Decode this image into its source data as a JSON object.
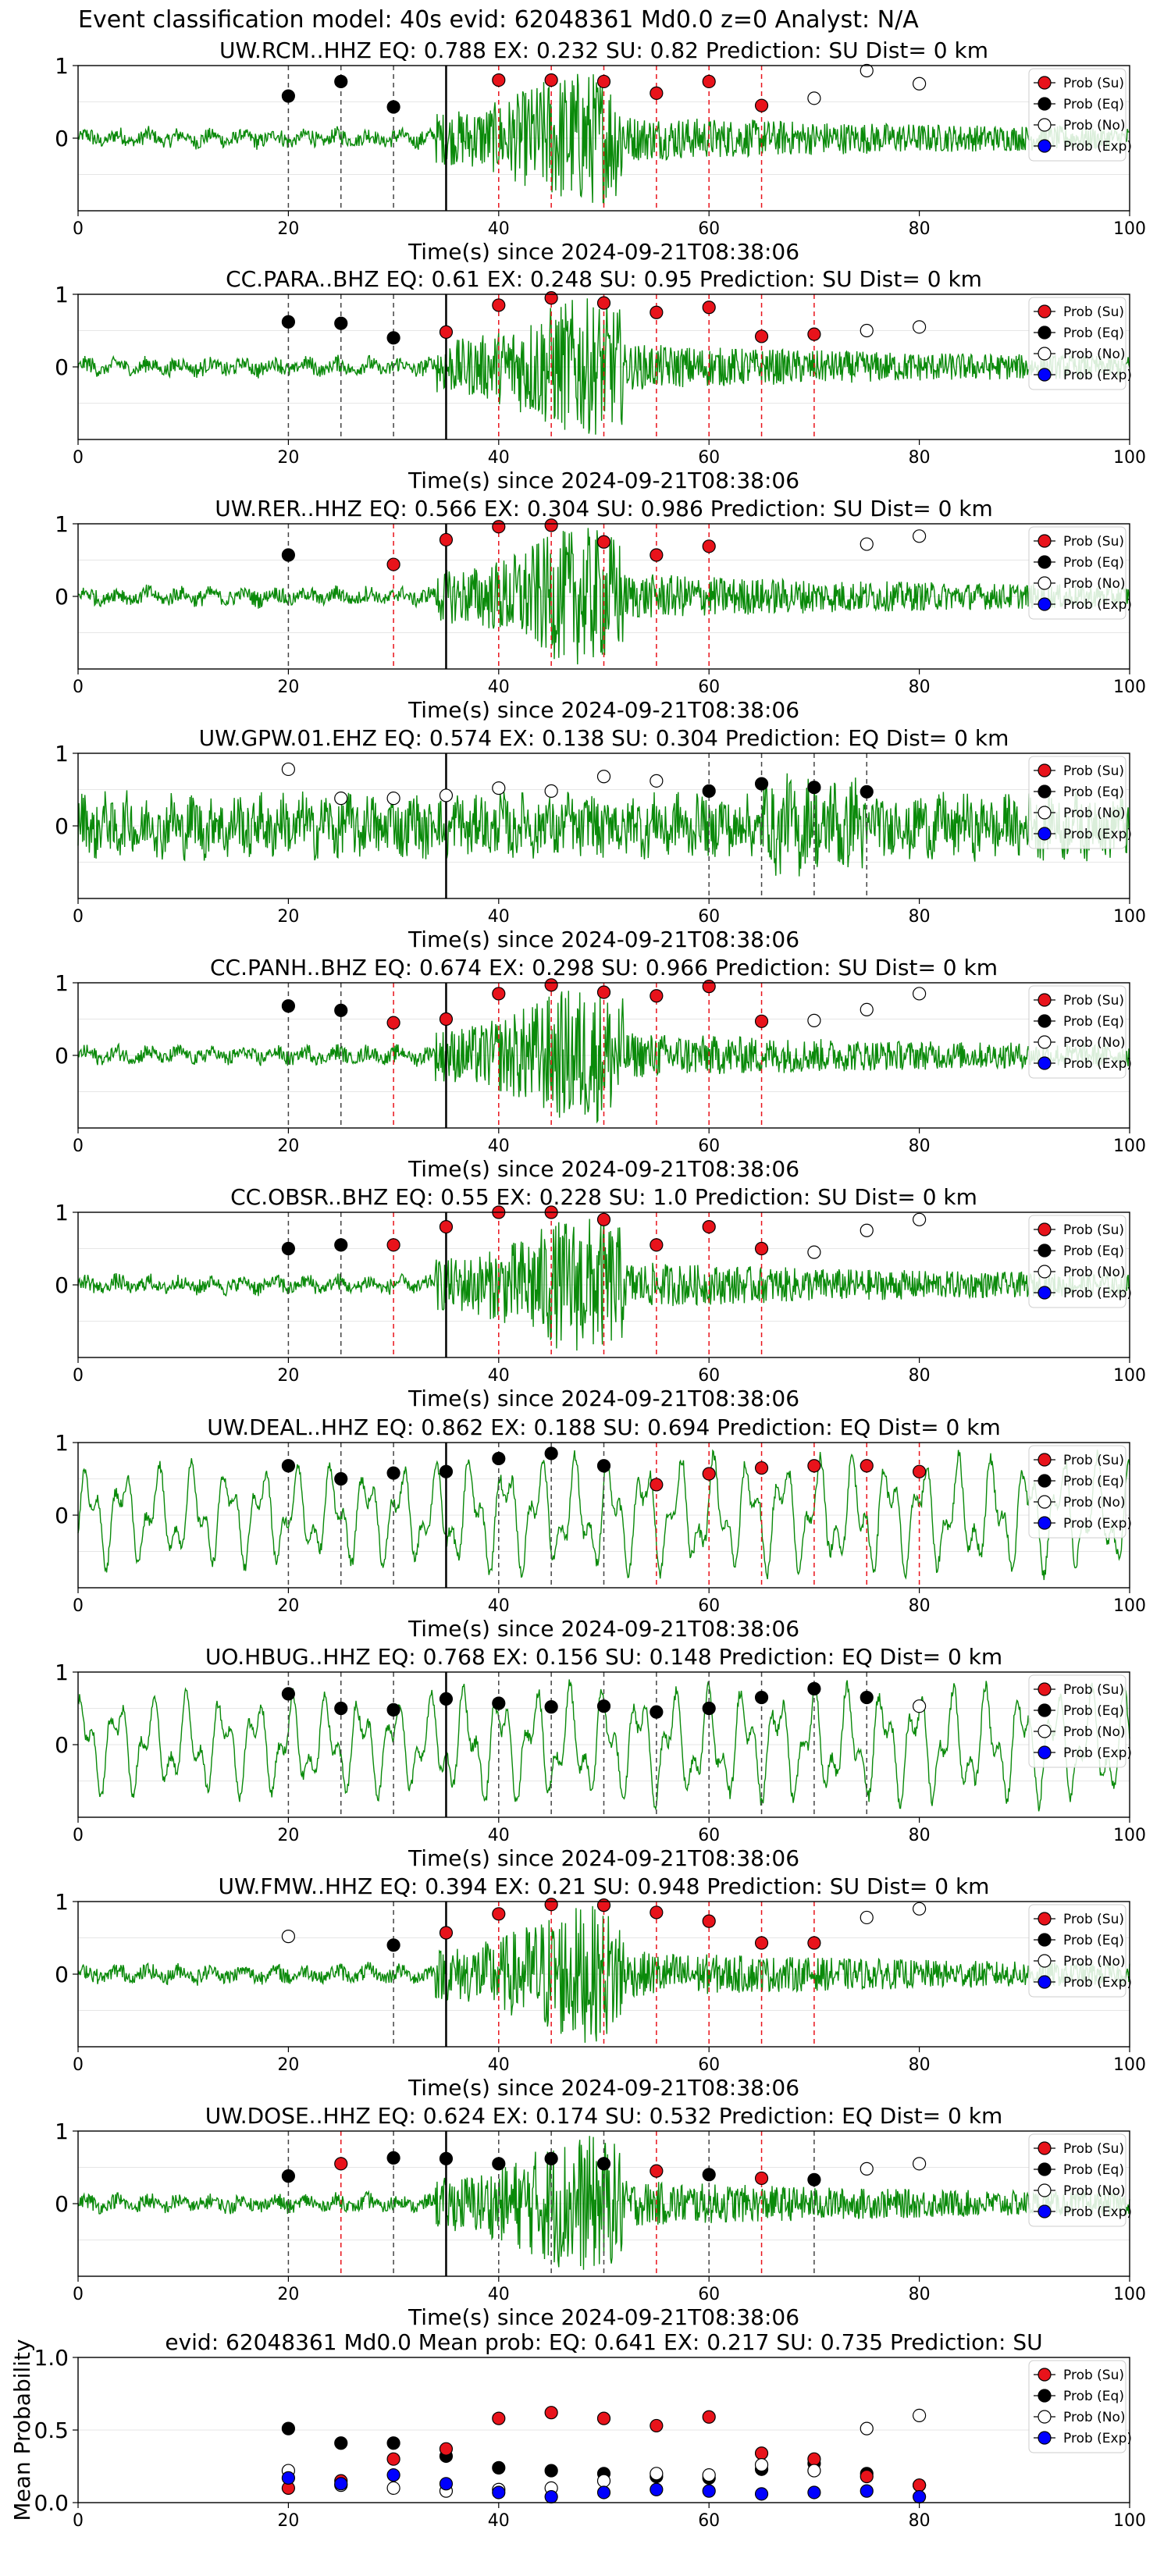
{
  "figure_title": "Event classification model: 40s evid: 62048361 Md0.0 z=0 Analyst: N/A",
  "legend_labels": [
    "Prob (Su)",
    "Prob (Eq)",
    "Prob (No)",
    "Prob (Exp)"
  ],
  "colors": {
    "su": "#e8131b",
    "eq": "#000000",
    "no": "#ffffff",
    "exp": "#0000ff",
    "waveform": "#0a8a0a",
    "onset": "#000000"
  },
  "chart_data": [
    {
      "type": "line",
      "title": "UW.RCM..HHZ   EQ: 0.788  EX: 0.232  SU: 0.82   Prediction: SU    Dist= 0 km",
      "xlabel": "Time(s) since 2024-09-21T08:38:06",
      "ylabel": "",
      "xlim": [
        0,
        100
      ],
      "ylim": [
        -1,
        1
      ],
      "xticks": [
        "0",
        "20",
        "40",
        "60",
        "80",
        "100"
      ],
      "yticks": [
        "1",
        "0"
      ],
      "onset_time": 35,
      "waveform_style": "quiet-then-burst",
      "points": [
        [
          20,
          0.58,
          "eq"
        ],
        [
          25,
          0.78,
          "eq"
        ],
        [
          30,
          0.43,
          "eq"
        ],
        [
          40,
          0.8,
          "su"
        ],
        [
          45,
          0.8,
          "su"
        ],
        [
          50,
          0.78,
          "su"
        ],
        [
          55,
          0.62,
          "su"
        ],
        [
          60,
          0.78,
          "su"
        ],
        [
          65,
          0.45,
          "su"
        ],
        [
          70,
          0.55,
          "no"
        ],
        [
          75,
          0.93,
          "no"
        ],
        [
          80,
          0.75,
          "no"
        ]
      ]
    },
    {
      "type": "line",
      "title": "CC.PARA..BHZ   EQ: 0.61  EX: 0.248  SU: 0.95   Prediction: SU    Dist= 0 km",
      "xlabel": "Time(s) since 2024-09-21T08:38:06",
      "ylabel": "",
      "xlim": [
        0,
        100
      ],
      "ylim": [
        -1,
        1
      ],
      "xticks": [
        "0",
        "20",
        "40",
        "60",
        "80",
        "100"
      ],
      "yticks": [
        "1",
        "0"
      ],
      "onset_time": 35,
      "waveform_style": "quiet-then-burst",
      "points": [
        [
          20,
          0.62,
          "eq"
        ],
        [
          25,
          0.6,
          "eq"
        ],
        [
          30,
          0.4,
          "eq"
        ],
        [
          35,
          0.48,
          "su"
        ],
        [
          40,
          0.85,
          "su"
        ],
        [
          45,
          0.95,
          "su"
        ],
        [
          50,
          0.88,
          "su"
        ],
        [
          55,
          0.75,
          "su"
        ],
        [
          60,
          0.82,
          "su"
        ],
        [
          65,
          0.42,
          "su"
        ],
        [
          70,
          0.45,
          "su"
        ],
        [
          75,
          0.5,
          "no"
        ],
        [
          80,
          0.55,
          "no"
        ]
      ]
    },
    {
      "type": "line",
      "title": "UW.RER..HHZ   EQ: 0.566  EX: 0.304  SU: 0.986   Prediction: SU    Dist= 0 km",
      "xlabel": "Time(s) since 2024-09-21T08:38:06",
      "ylabel": "",
      "xlim": [
        0,
        100
      ],
      "ylim": [
        -1,
        1
      ],
      "xticks": [
        "0",
        "20",
        "40",
        "60",
        "80",
        "100"
      ],
      "yticks": [
        "1",
        "0"
      ],
      "onset_time": 35,
      "waveform_style": "quiet-then-burst",
      "points": [
        [
          20,
          0.57,
          "eq"
        ],
        [
          30,
          0.44,
          "su"
        ],
        [
          35,
          0.78,
          "su"
        ],
        [
          40,
          0.96,
          "su"
        ],
        [
          45,
          0.98,
          "su"
        ],
        [
          50,
          0.75,
          "su"
        ],
        [
          55,
          0.57,
          "su"
        ],
        [
          60,
          0.69,
          "su"
        ],
        [
          75,
          0.72,
          "no"
        ],
        [
          80,
          0.83,
          "no"
        ]
      ]
    },
    {
      "type": "line",
      "title": "UW.GPW.01.EHZ   EQ: 0.574  EX: 0.138  SU: 0.304   Prediction: EQ    Dist= 0 km",
      "xlabel": "Time(s) since 2024-09-21T08:38:06",
      "ylabel": "",
      "xlim": [
        0,
        100
      ],
      "ylim": [
        -1,
        1
      ],
      "xticks": [
        "0",
        "20",
        "40",
        "60",
        "80",
        "100"
      ],
      "yticks": [
        "1",
        "0"
      ],
      "onset_time": 35,
      "waveform_style": "noisy",
      "points": [
        [
          20,
          0.78,
          "no"
        ],
        [
          25,
          0.38,
          "no"
        ],
        [
          30,
          0.38,
          "no"
        ],
        [
          35,
          0.42,
          "no"
        ],
        [
          40,
          0.52,
          "no"
        ],
        [
          45,
          0.48,
          "no"
        ],
        [
          50,
          0.68,
          "no"
        ],
        [
          55,
          0.62,
          "no"
        ],
        [
          60,
          0.48,
          "eq"
        ],
        [
          65,
          0.58,
          "eq"
        ],
        [
          70,
          0.53,
          "eq"
        ],
        [
          75,
          0.47,
          "eq"
        ]
      ]
    },
    {
      "type": "line",
      "title": "CC.PANH..BHZ   EQ: 0.674  EX: 0.298  SU: 0.966   Prediction: SU    Dist= 0 km",
      "xlabel": "Time(s) since 2024-09-21T08:38:06",
      "ylabel": "",
      "xlim": [
        0,
        100
      ],
      "ylim": [
        -1,
        1
      ],
      "xticks": [
        "0",
        "20",
        "40",
        "60",
        "80",
        "100"
      ],
      "yticks": [
        "1",
        "0"
      ],
      "onset_time": 35,
      "waveform_style": "quiet-then-burst",
      "points": [
        [
          20,
          0.68,
          "eq"
        ],
        [
          25,
          0.62,
          "eq"
        ],
        [
          30,
          0.45,
          "su"
        ],
        [
          35,
          0.5,
          "su"
        ],
        [
          40,
          0.85,
          "su"
        ],
        [
          45,
          0.97,
          "su"
        ],
        [
          50,
          0.87,
          "su"
        ],
        [
          55,
          0.82,
          "su"
        ],
        [
          60,
          0.95,
          "su"
        ],
        [
          65,
          0.47,
          "su"
        ],
        [
          70,
          0.48,
          "no"
        ],
        [
          75,
          0.63,
          "no"
        ],
        [
          80,
          0.85,
          "no"
        ]
      ]
    },
    {
      "type": "line",
      "title": "CC.OBSR..BHZ   EQ: 0.55  EX: 0.228  SU: 1.0   Prediction: SU    Dist= 0 km",
      "xlabel": "Time(s) since 2024-09-21T08:38:06",
      "ylabel": "",
      "xlim": [
        0,
        100
      ],
      "ylim": [
        -1,
        1
      ],
      "xticks": [
        "0",
        "20",
        "40",
        "60",
        "80",
        "100"
      ],
      "yticks": [
        "1",
        "0"
      ],
      "onset_time": 35,
      "waveform_style": "quiet-then-burst",
      "points": [
        [
          20,
          0.5,
          "eq"
        ],
        [
          25,
          0.55,
          "eq"
        ],
        [
          30,
          0.55,
          "su"
        ],
        [
          35,
          0.8,
          "su"
        ],
        [
          40,
          1.0,
          "su"
        ],
        [
          45,
          1.0,
          "su"
        ],
        [
          50,
          0.9,
          "su"
        ],
        [
          55,
          0.55,
          "su"
        ],
        [
          60,
          0.8,
          "su"
        ],
        [
          65,
          0.5,
          "su"
        ],
        [
          70,
          0.45,
          "no"
        ],
        [
          75,
          0.75,
          "no"
        ],
        [
          80,
          0.9,
          "no"
        ]
      ]
    },
    {
      "type": "line",
      "title": "UW.DEAL..HHZ   EQ: 0.862  EX: 0.188  SU: 0.694   Prediction: EQ    Dist= 0 km",
      "xlabel": "Time(s) since 2024-09-21T08:38:06",
      "ylabel": "",
      "xlim": [
        0,
        100
      ],
      "ylim": [
        -1,
        1
      ],
      "xticks": [
        "0",
        "20",
        "40",
        "60",
        "80",
        "100"
      ],
      "yticks": [
        "1",
        "0"
      ],
      "onset_time": 35,
      "waveform_style": "long-period",
      "points": [
        [
          20,
          0.68,
          "eq"
        ],
        [
          25,
          0.5,
          "eq"
        ],
        [
          30,
          0.58,
          "eq"
        ],
        [
          35,
          0.6,
          "eq"
        ],
        [
          40,
          0.78,
          "eq"
        ],
        [
          45,
          0.85,
          "eq"
        ],
        [
          50,
          0.68,
          "eq"
        ],
        [
          55,
          0.42,
          "su"
        ],
        [
          60,
          0.57,
          "su"
        ],
        [
          65,
          0.65,
          "su"
        ],
        [
          70,
          0.68,
          "su"
        ],
        [
          75,
          0.68,
          "su"
        ],
        [
          80,
          0.6,
          "su"
        ]
      ]
    },
    {
      "type": "line",
      "title": "UO.HBUG..HHZ   EQ: 0.768  EX: 0.156  SU: 0.148   Prediction: EQ    Dist= 0 km",
      "xlabel": "Time(s) since 2024-09-21T08:38:06",
      "ylabel": "",
      "xlim": [
        0,
        100
      ],
      "ylim": [
        -1,
        1
      ],
      "xticks": [
        "0",
        "20",
        "40",
        "60",
        "80",
        "100"
      ],
      "yticks": [
        "1",
        "0"
      ],
      "onset_time": 35,
      "waveform_style": "long-period",
      "points": [
        [
          20,
          0.7,
          "eq"
        ],
        [
          25,
          0.5,
          "eq"
        ],
        [
          30,
          0.48,
          "eq"
        ],
        [
          35,
          0.63,
          "eq"
        ],
        [
          40,
          0.57,
          "eq"
        ],
        [
          45,
          0.52,
          "eq"
        ],
        [
          50,
          0.53,
          "eq"
        ],
        [
          55,
          0.45,
          "eq"
        ],
        [
          60,
          0.5,
          "eq"
        ],
        [
          65,
          0.65,
          "eq"
        ],
        [
          70,
          0.77,
          "eq"
        ],
        [
          75,
          0.65,
          "eq"
        ],
        [
          80,
          0.53,
          "no"
        ]
      ]
    },
    {
      "type": "line",
      "title": "UW.FMW..HHZ   EQ: 0.394  EX: 0.21  SU: 0.948   Prediction: SU    Dist= 0 km",
      "xlabel": "Time(s) since 2024-09-21T08:38:06",
      "ylabel": "",
      "xlim": [
        0,
        100
      ],
      "ylim": [
        -1,
        1
      ],
      "xticks": [
        "0",
        "20",
        "40",
        "60",
        "80",
        "100"
      ],
      "yticks": [
        "1",
        "0"
      ],
      "onset_time": 35,
      "waveform_style": "quiet-then-burst",
      "points": [
        [
          20,
          0.52,
          "no"
        ],
        [
          30,
          0.4,
          "eq"
        ],
        [
          35,
          0.57,
          "su"
        ],
        [
          40,
          0.83,
          "su"
        ],
        [
          45,
          0.96,
          "su"
        ],
        [
          50,
          0.95,
          "su"
        ],
        [
          55,
          0.85,
          "su"
        ],
        [
          60,
          0.73,
          "su"
        ],
        [
          65,
          0.43,
          "su"
        ],
        [
          70,
          0.43,
          "su"
        ],
        [
          75,
          0.78,
          "no"
        ],
        [
          80,
          0.9,
          "no"
        ]
      ]
    },
    {
      "type": "line",
      "title": "UW.DOSE..HHZ   EQ: 0.624  EX: 0.174  SU: 0.532   Prediction: EQ    Dist= 0 km",
      "xlabel": "Time(s) since 2024-09-21T08:38:06",
      "ylabel": "",
      "xlim": [
        0,
        100
      ],
      "ylim": [
        -1,
        1
      ],
      "xticks": [
        "0",
        "20",
        "40",
        "60",
        "80",
        "100"
      ],
      "yticks": [
        "1",
        "0"
      ],
      "onset_time": 35,
      "waveform_style": "quiet-then-burst",
      "points": [
        [
          20,
          0.38,
          "eq"
        ],
        [
          25,
          0.55,
          "su"
        ],
        [
          30,
          0.63,
          "eq"
        ],
        [
          35,
          0.62,
          "eq"
        ],
        [
          40,
          0.55,
          "eq"
        ],
        [
          45,
          0.62,
          "eq"
        ],
        [
          50,
          0.55,
          "eq"
        ],
        [
          55,
          0.45,
          "su"
        ],
        [
          60,
          0.4,
          "eq"
        ],
        [
          65,
          0.35,
          "su"
        ],
        [
          70,
          0.33,
          "eq"
        ],
        [
          75,
          0.48,
          "no"
        ],
        [
          80,
          0.55,
          "no"
        ]
      ]
    },
    {
      "type": "scatter",
      "title": "evid: 62048361   Md0.0   Mean prob:   EQ: 0.641  EX: 0.217  SU: 0.735   Prediction: SU",
      "xlabel": "",
      "ylabel": "Mean Probability",
      "xlim": [
        0,
        100
      ],
      "ylim": [
        0,
        1
      ],
      "xticks": [
        "0",
        "20",
        "40",
        "60",
        "80",
        "100"
      ],
      "yticks": [
        "1.0",
        "0.5",
        "0.0"
      ],
      "points": [
        [
          20,
          0.51,
          "eq"
        ],
        [
          25,
          0.41,
          "eq"
        ],
        [
          30,
          0.41,
          "eq"
        ],
        [
          35,
          0.32,
          "eq"
        ],
        [
          40,
          0.24,
          "eq"
        ],
        [
          45,
          0.22,
          "eq"
        ],
        [
          50,
          0.2,
          "eq"
        ],
        [
          55,
          0.18,
          "eq"
        ],
        [
          60,
          0.17,
          "eq"
        ],
        [
          65,
          0.23,
          "eq"
        ],
        [
          70,
          0.27,
          "eq"
        ],
        [
          75,
          0.2,
          "eq"
        ],
        [
          80,
          0.12,
          "eq"
        ],
        [
          20,
          0.1,
          "su"
        ],
        [
          25,
          0.15,
          "su"
        ],
        [
          30,
          0.3,
          "su"
        ],
        [
          35,
          0.37,
          "su"
        ],
        [
          40,
          0.58,
          "su"
        ],
        [
          45,
          0.62,
          "su"
        ],
        [
          50,
          0.58,
          "su"
        ],
        [
          55,
          0.53,
          "su"
        ],
        [
          60,
          0.59,
          "su"
        ],
        [
          65,
          0.34,
          "su"
        ],
        [
          70,
          0.3,
          "su"
        ],
        [
          75,
          0.18,
          "su"
        ],
        [
          80,
          0.12,
          "su"
        ],
        [
          20,
          0.22,
          "no"
        ],
        [
          25,
          0.12,
          "no"
        ],
        [
          30,
          0.1,
          "no"
        ],
        [
          35,
          0.08,
          "no"
        ],
        [
          40,
          0.09,
          "no"
        ],
        [
          45,
          0.1,
          "no"
        ],
        [
          50,
          0.15,
          "no"
        ],
        [
          55,
          0.2,
          "no"
        ],
        [
          60,
          0.19,
          "no"
        ],
        [
          65,
          0.26,
          "no"
        ],
        [
          70,
          0.22,
          "no"
        ],
        [
          75,
          0.51,
          "no"
        ],
        [
          80,
          0.6,
          "no"
        ],
        [
          20,
          0.17,
          "exp"
        ],
        [
          25,
          0.13,
          "exp"
        ],
        [
          30,
          0.19,
          "exp"
        ],
        [
          35,
          0.13,
          "exp"
        ],
        [
          40,
          0.07,
          "exp"
        ],
        [
          45,
          0.04,
          "exp"
        ],
        [
          50,
          0.07,
          "exp"
        ],
        [
          55,
          0.09,
          "exp"
        ],
        [
          60,
          0.08,
          "exp"
        ],
        [
          65,
          0.06,
          "exp"
        ],
        [
          70,
          0.07,
          "exp"
        ],
        [
          75,
          0.08,
          "exp"
        ],
        [
          80,
          0.04,
          "exp"
        ]
      ]
    }
  ]
}
